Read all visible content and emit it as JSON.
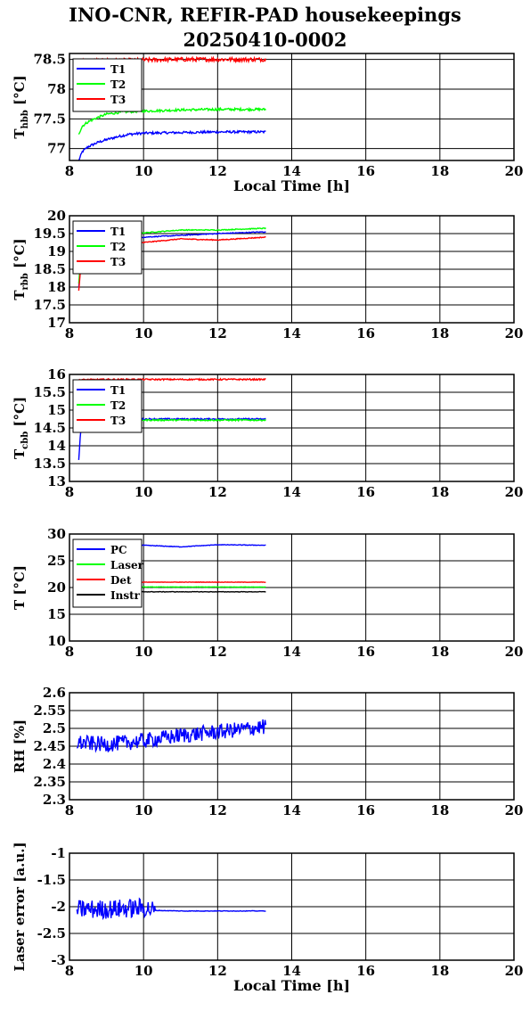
{
  "title_line1": "INO-CNR, REFIR-PAD housekeepings",
  "title_line2": "20250410-0002",
  "colors": {
    "blue": "#0000ff",
    "green": "#00ff00",
    "red": "#ff0000",
    "black": "#000000"
  },
  "chart_data": [
    {
      "type": "line",
      "ylabel_main": "T",
      "ylabel_sub": "hbb",
      "ylabel_tail": " [°C]",
      "xlabel": "Local Time [h]",
      "xlim": [
        8,
        20
      ],
      "ylim": [
        76.8,
        78.6
      ],
      "xticks": [
        8,
        10,
        12,
        14,
        16,
        18,
        20
      ],
      "yticks": [
        77,
        77.5,
        78,
        78.5
      ],
      "ytick_labels": [
        "77",
        "77.5",
        "78",
        "78.5"
      ],
      "grid": true,
      "legend_position": "top-left",
      "series": [
        {
          "name": "T1",
          "color": "#0000ff",
          "noise": 0.02,
          "points": [
            [
              8.25,
              76.8
            ],
            [
              8.35,
              76.95
            ],
            [
              8.5,
              77.03
            ],
            [
              8.75,
              77.1
            ],
            [
              9,
              77.15
            ],
            [
              9.3,
              77.2
            ],
            [
              9.6,
              77.24
            ],
            [
              10,
              77.26
            ],
            [
              11,
              77.27
            ],
            [
              12,
              77.28
            ],
            [
              13.3,
              77.28
            ]
          ]
        },
        {
          "name": "T2",
          "color": "#00ff00",
          "noise": 0.02,
          "points": [
            [
              8.25,
              77.25
            ],
            [
              8.35,
              77.38
            ],
            [
              8.5,
              77.45
            ],
            [
              8.75,
              77.52
            ],
            [
              9,
              77.58
            ],
            [
              9.5,
              77.62
            ],
            [
              10,
              77.63
            ],
            [
              11,
              77.65
            ],
            [
              12,
              77.66
            ],
            [
              13.3,
              77.66
            ]
          ]
        },
        {
          "name": "T3",
          "color": "#ff0000",
          "noise": 0.035,
          "points": [
            [
              8.25,
              78.47
            ],
            [
              9,
              78.48
            ],
            [
              10,
              78.49
            ],
            [
              11,
              78.5
            ],
            [
              12,
              78.5
            ],
            [
              13.3,
              78.5
            ]
          ]
        }
      ]
    },
    {
      "type": "line",
      "ylabel_main": "T",
      "ylabel_sub": "rbb",
      "ylabel_tail": " [°C]",
      "xlabel": "",
      "xlim": [
        8,
        20
      ],
      "ylim": [
        17,
        20
      ],
      "xticks": [
        8,
        10,
        12,
        14,
        16,
        18,
        20
      ],
      "yticks": [
        17,
        17.5,
        18,
        18.5,
        19,
        19.5,
        20
      ],
      "ytick_labels": [
        "17",
        "17.5",
        "18",
        "18.5",
        "19",
        "19.5",
        "20"
      ],
      "grid": true,
      "legend_position": "top-left",
      "series": [
        {
          "name": "T1",
          "color": "#0000ff",
          "noise": 0.012,
          "points": [
            [
              8.25,
              18.0
            ],
            [
              8.3,
              18.6
            ],
            [
              8.45,
              19.1
            ],
            [
              9,
              19.3
            ],
            [
              10,
              19.4
            ],
            [
              11,
              19.45
            ],
            [
              12,
              19.5
            ],
            [
              13.3,
              19.55
            ]
          ]
        },
        {
          "name": "T2",
          "color": "#00ff00",
          "noise": 0.012,
          "points": [
            [
              8.25,
              18.1
            ],
            [
              8.3,
              18.7
            ],
            [
              8.45,
              19.2
            ],
            [
              9,
              19.4
            ],
            [
              10,
              19.52
            ],
            [
              11,
              19.6
            ],
            [
              12,
              19.6
            ],
            [
              13.3,
              19.65
            ]
          ]
        },
        {
          "name": "T3",
          "color": "#ff0000",
          "noise": 0.012,
          "points": [
            [
              8.25,
              17.9
            ],
            [
              8.3,
              18.5
            ],
            [
              8.45,
              18.95
            ],
            [
              9,
              19.15
            ],
            [
              10,
              19.25
            ],
            [
              11,
              19.35
            ],
            [
              12,
              19.32
            ],
            [
              13.3,
              19.4
            ]
          ]
        }
      ]
    },
    {
      "type": "line",
      "ylabel_main": "T",
      "ylabel_sub": "cbb",
      "ylabel_tail": " [°C]",
      "xlabel": "",
      "xlim": [
        8,
        20
      ],
      "ylim": [
        13,
        16
      ],
      "xticks": [
        8,
        10,
        12,
        14,
        16,
        18,
        20
      ],
      "yticks": [
        13,
        13.5,
        14,
        14.5,
        15,
        15.5,
        16
      ],
      "ytick_labels": [
        "13",
        "13.5",
        "14",
        "14.5",
        "15",
        "15.5",
        "16"
      ],
      "grid": true,
      "legend_position": "top-left",
      "series": [
        {
          "name": "T1",
          "color": "#0000ff",
          "noise": 0.02,
          "points": [
            [
              8.25,
              13.6
            ],
            [
              8.3,
              14.4
            ],
            [
              8.4,
              14.7
            ],
            [
              9,
              14.75
            ],
            [
              13.3,
              14.75
            ]
          ]
        },
        {
          "name": "T2",
          "color": "#00ff00",
          "noise": 0.02,
          "points": [
            [
              8.25,
              14.6
            ],
            [
              8.35,
              14.7
            ],
            [
              9,
              14.72
            ],
            [
              13.3,
              14.72
            ]
          ]
        },
        {
          "name": "T3",
          "color": "#ff0000",
          "noise": 0.02,
          "points": [
            [
              8.25,
              15.85
            ],
            [
              9,
              15.86
            ],
            [
              13.3,
              15.86
            ]
          ]
        }
      ]
    },
    {
      "type": "line",
      "ylabel_main": "T",
      "ylabel_sub": "",
      "ylabel_tail": " [°C]",
      "xlabel": "",
      "xlim": [
        8,
        20
      ],
      "ylim": [
        10,
        30
      ],
      "xticks": [
        8,
        10,
        12,
        14,
        16,
        18,
        20
      ],
      "yticks": [
        10,
        15,
        20,
        25,
        30
      ],
      "ytick_labels": [
        "10",
        "15",
        "20",
        "25",
        "30"
      ],
      "grid": true,
      "legend_position": "top-left",
      "series": [
        {
          "name": "PC",
          "color": "#0000ff",
          "noise": 0.05,
          "points": [
            [
              8.25,
              27.8
            ],
            [
              10,
              27.9
            ],
            [
              11,
              27.6
            ],
            [
              12,
              28.0
            ],
            [
              13.3,
              27.9
            ]
          ]
        },
        {
          "name": "Laser",
          "color": "#00ff00",
          "noise": 0.04,
          "points": [
            [
              8.25,
              20.1
            ],
            [
              13.3,
              20.1
            ]
          ]
        },
        {
          "name": "Det",
          "color": "#ff0000",
          "noise": 0.04,
          "points": [
            [
              8.25,
              21.0
            ],
            [
              13.3,
              21.0
            ]
          ]
        },
        {
          "name": "Instr",
          "color": "#000000",
          "noise": 0.04,
          "points": [
            [
              8.25,
              19.2
            ],
            [
              13.3,
              19.2
            ]
          ]
        }
      ]
    },
    {
      "type": "line",
      "ylabel_main": "RH [%]",
      "ylabel_sub": "",
      "ylabel_tail": "",
      "xlabel": "",
      "xlim": [
        8,
        20
      ],
      "ylim": [
        2.3,
        2.6
      ],
      "xticks": [
        8,
        10,
        12,
        14,
        16,
        18,
        20
      ],
      "yticks": [
        2.3,
        2.35,
        2.4,
        2.45,
        2.5,
        2.55,
        2.6
      ],
      "ytick_labels": [
        "2.3",
        "2.35",
        "2.4",
        "2.45",
        "2.5",
        "2.55",
        "2.6"
      ],
      "grid": true,
      "legend_position": "none",
      "series": [
        {
          "name": "",
          "color": "#0000ff",
          "noise": 0.022,
          "points": [
            [
              8.2,
              2.46
            ],
            [
              9,
              2.455
            ],
            [
              10,
              2.465
            ],
            [
              11,
              2.48
            ],
            [
              12,
              2.49
            ],
            [
              13.3,
              2.505
            ]
          ]
        }
      ]
    },
    {
      "type": "line",
      "ylabel_main": "Laser error [a.u.]",
      "ylabel_sub": "",
      "ylabel_tail": "",
      "xlabel": "Local Time [h]",
      "xlim": [
        8,
        20
      ],
      "ylim": [
        -3,
        -1
      ],
      "xticks": [
        8,
        10,
        12,
        14,
        16,
        18,
        20
      ],
      "yticks": [
        -3,
        -2.5,
        -2,
        -1.5,
        -1
      ],
      "ytick_labels": [
        "-3",
        "-2.5",
        "-2",
        "-1.5",
        "-1"
      ],
      "grid": true,
      "legend_position": "none",
      "series": [
        {
          "name": "",
          "color": "#0000ff",
          "noise": 0.18,
          "noise_until": 10.3,
          "points": [
            [
              8.2,
              -2.05
            ],
            [
              9,
              -2.05
            ],
            [
              10,
              -2.02
            ],
            [
              10.3,
              -2.07
            ],
            [
              11,
              -2.08
            ],
            [
              12,
              -2.08
            ],
            [
              13.3,
              -2.08
            ]
          ]
        }
      ]
    }
  ]
}
